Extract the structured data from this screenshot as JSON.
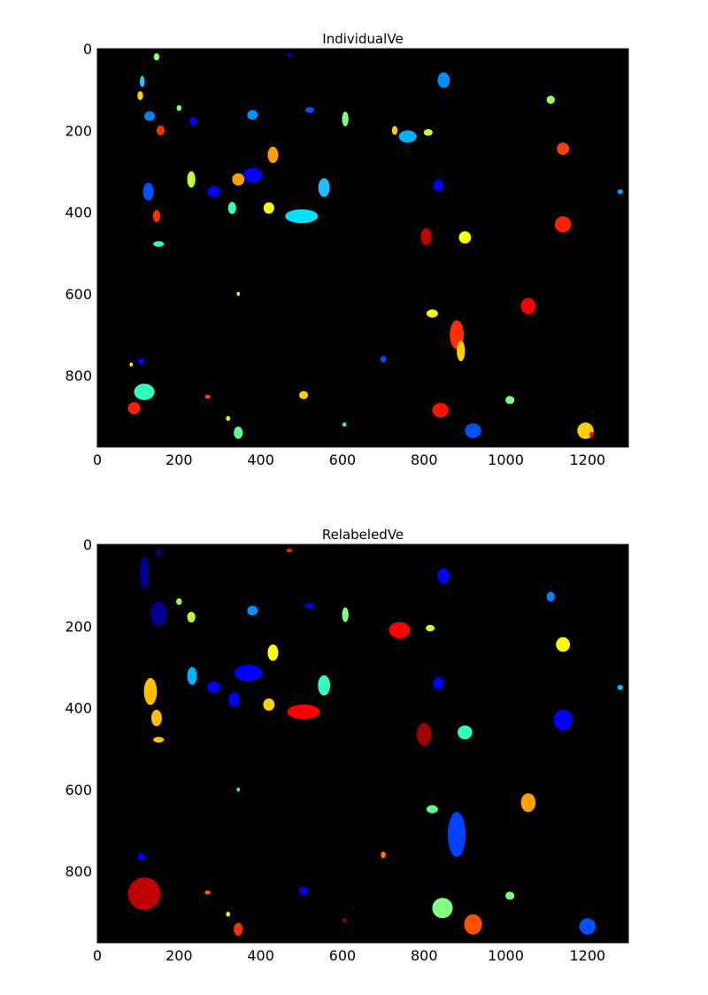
{
  "chart_data": [
    {
      "type": "image",
      "title": "IndividualVe",
      "xlim": [
        0,
        1300
      ],
      "ylim": [
        975,
        0
      ],
      "xticks": [
        "0",
        "200",
        "400",
        "600",
        "800",
        "1000",
        "1200"
      ],
      "yticks": [
        "0",
        "200",
        "400",
        "600",
        "800"
      ],
      "background": "#000000",
      "blobs": [
        {
          "x": 145,
          "y": 20,
          "w": 14,
          "h": 18,
          "color": "#80ff80"
        },
        {
          "x": 110,
          "y": 80,
          "w": 12,
          "h": 28,
          "color": "#30c0ff"
        },
        {
          "x": 105,
          "y": 115,
          "w": 14,
          "h": 22,
          "color": "#ffd000"
        },
        {
          "x": 128,
          "y": 165,
          "w": 26,
          "h": 24,
          "color": "#0080ff"
        },
        {
          "x": 155,
          "y": 200,
          "w": 20,
          "h": 24,
          "color": "#ff3000"
        },
        {
          "x": 200,
          "y": 145,
          "w": 12,
          "h": 14,
          "color": "#80ff80"
        },
        {
          "x": 235,
          "y": 178,
          "w": 18,
          "h": 22,
          "color": "#0000ff"
        },
        {
          "x": 380,
          "y": 162,
          "w": 26,
          "h": 24,
          "color": "#0090ff"
        },
        {
          "x": 520,
          "y": 150,
          "w": 22,
          "h": 14,
          "color": "#0050ff"
        },
        {
          "x": 607,
          "y": 172,
          "w": 16,
          "h": 36,
          "color": "#80ff80"
        },
        {
          "x": 470,
          "y": 15,
          "w": 14,
          "h": 10,
          "color": "#0000c0"
        },
        {
          "x": 848,
          "y": 77,
          "w": 30,
          "h": 38,
          "color": "#0090ff"
        },
        {
          "x": 760,
          "y": 215,
          "w": 44,
          "h": 30,
          "color": "#00b0ff"
        },
        {
          "x": 728,
          "y": 200,
          "w": 14,
          "h": 22,
          "color": "#ffd000"
        },
        {
          "x": 810,
          "y": 205,
          "w": 22,
          "h": 16,
          "color": "#c0ff40"
        },
        {
          "x": 1110,
          "y": 125,
          "w": 20,
          "h": 20,
          "color": "#a0ff60"
        },
        {
          "x": 1140,
          "y": 245,
          "w": 30,
          "h": 30,
          "color": "#ff4000"
        },
        {
          "x": 430,
          "y": 260,
          "w": 26,
          "h": 40,
          "color": "#ffa000"
        },
        {
          "x": 380,
          "y": 310,
          "w": 48,
          "h": 36,
          "color": "#0000ff"
        },
        {
          "x": 345,
          "y": 320,
          "w": 30,
          "h": 30,
          "color": "#ffa000"
        },
        {
          "x": 285,
          "y": 350,
          "w": 32,
          "h": 28,
          "color": "#0000ff"
        },
        {
          "x": 230,
          "y": 320,
          "w": 20,
          "h": 40,
          "color": "#c0ff40"
        },
        {
          "x": 555,
          "y": 340,
          "w": 28,
          "h": 46,
          "color": "#20c0ff"
        },
        {
          "x": 500,
          "y": 410,
          "w": 80,
          "h": 34,
          "color": "#00e0ff"
        },
        {
          "x": 420,
          "y": 390,
          "w": 26,
          "h": 28,
          "color": "#ffff00"
        },
        {
          "x": 330,
          "y": 390,
          "w": 20,
          "h": 30,
          "color": "#30ffc0"
        },
        {
          "x": 125,
          "y": 350,
          "w": 26,
          "h": 44,
          "color": "#0050ff"
        },
        {
          "x": 145,
          "y": 410,
          "w": 18,
          "h": 30,
          "color": "#ff3000"
        },
        {
          "x": 150,
          "y": 478,
          "w": 26,
          "h": 14,
          "color": "#30ffc0"
        },
        {
          "x": 835,
          "y": 335,
          "w": 24,
          "h": 30,
          "color": "#0000ff"
        },
        {
          "x": 805,
          "y": 460,
          "w": 26,
          "h": 42,
          "color": "#c00000"
        },
        {
          "x": 900,
          "y": 462,
          "w": 30,
          "h": 30,
          "color": "#ffff00"
        },
        {
          "x": 1140,
          "y": 430,
          "w": 40,
          "h": 40,
          "color": "#ff2000"
        },
        {
          "x": 1280,
          "y": 350,
          "w": 14,
          "h": 12,
          "color": "#00a0ff"
        },
        {
          "x": 345,
          "y": 600,
          "w": 8,
          "h": 10,
          "color": "#ffff00"
        },
        {
          "x": 820,
          "y": 648,
          "w": 28,
          "h": 20,
          "color": "#ffff00"
        },
        {
          "x": 880,
          "y": 700,
          "w": 34,
          "h": 70,
          "color": "#ff3000"
        },
        {
          "x": 890,
          "y": 740,
          "w": 20,
          "h": 50,
          "color": "#ffd000"
        },
        {
          "x": 1055,
          "y": 630,
          "w": 36,
          "h": 40,
          "color": "#ff0000"
        },
        {
          "x": 700,
          "y": 760,
          "w": 14,
          "h": 16,
          "color": "#0050ff"
        },
        {
          "x": 108,
          "y": 765,
          "w": 16,
          "h": 16,
          "color": "#0000ff"
        },
        {
          "x": 83,
          "y": 773,
          "w": 8,
          "h": 10,
          "color": "#ffff00"
        },
        {
          "x": 115,
          "y": 840,
          "w": 50,
          "h": 40,
          "color": "#30ffc0"
        },
        {
          "x": 90,
          "y": 880,
          "w": 30,
          "h": 30,
          "color": "#ff2000"
        },
        {
          "x": 270,
          "y": 852,
          "w": 14,
          "h": 10,
          "color": "#ff4000"
        },
        {
          "x": 505,
          "y": 848,
          "w": 22,
          "h": 20,
          "color": "#ffd000"
        },
        {
          "x": 320,
          "y": 905,
          "w": 10,
          "h": 12,
          "color": "#ffff00"
        },
        {
          "x": 345,
          "y": 940,
          "w": 22,
          "h": 30,
          "color": "#60ff90"
        },
        {
          "x": 605,
          "y": 920,
          "w": 10,
          "h": 10,
          "color": "#30ffc0"
        },
        {
          "x": 840,
          "y": 885,
          "w": 40,
          "h": 36,
          "color": "#ff1000"
        },
        {
          "x": 1010,
          "y": 860,
          "w": 22,
          "h": 20,
          "color": "#80ff80"
        },
        {
          "x": 920,
          "y": 935,
          "w": 40,
          "h": 36,
          "color": "#0050ff"
        },
        {
          "x": 1195,
          "y": 935,
          "w": 40,
          "h": 40,
          "color": "#ffd000"
        },
        {
          "x": 1210,
          "y": 945,
          "w": 10,
          "h": 14,
          "color": "#ff0000"
        }
      ]
    },
    {
      "type": "image",
      "title": "RelabeledVe",
      "xlim": [
        0,
        1300
      ],
      "ylim": [
        975,
        0
      ],
      "xticks": [
        "0",
        "200",
        "400",
        "600",
        "800",
        "1000",
        "1200"
      ],
      "yticks": [
        "0",
        "200",
        "400",
        "600",
        "800"
      ],
      "background": "#000000",
      "blobs": [
        {
          "x": 150,
          "y": 20,
          "w": 16,
          "h": 18,
          "color": "#000080"
        },
        {
          "x": 115,
          "y": 70,
          "w": 22,
          "h": 80,
          "color": "#000090"
        },
        {
          "x": 150,
          "y": 170,
          "w": 40,
          "h": 60,
          "color": "#000090"
        },
        {
          "x": 200,
          "y": 140,
          "w": 14,
          "h": 16,
          "color": "#a0ff60"
        },
        {
          "x": 230,
          "y": 178,
          "w": 20,
          "h": 26,
          "color": "#c0ff40"
        },
        {
          "x": 380,
          "y": 162,
          "w": 26,
          "h": 24,
          "color": "#0090ff"
        },
        {
          "x": 520,
          "y": 150,
          "w": 26,
          "h": 14,
          "color": "#0000d0"
        },
        {
          "x": 607,
          "y": 172,
          "w": 16,
          "h": 36,
          "color": "#80ff80"
        },
        {
          "x": 470,
          "y": 15,
          "w": 14,
          "h": 10,
          "color": "#ff2000"
        },
        {
          "x": 848,
          "y": 77,
          "w": 30,
          "h": 38,
          "color": "#0000ff"
        },
        {
          "x": 740,
          "y": 210,
          "w": 52,
          "h": 40,
          "color": "#ff0000"
        },
        {
          "x": 815,
          "y": 205,
          "w": 22,
          "h": 16,
          "color": "#c0ff40"
        },
        {
          "x": 1110,
          "y": 128,
          "w": 20,
          "h": 24,
          "color": "#0080ff"
        },
        {
          "x": 1140,
          "y": 245,
          "w": 34,
          "h": 36,
          "color": "#ffff00"
        },
        {
          "x": 430,
          "y": 265,
          "w": 26,
          "h": 40,
          "color": "#ffff00"
        },
        {
          "x": 370,
          "y": 315,
          "w": 70,
          "h": 40,
          "color": "#0000ff"
        },
        {
          "x": 285,
          "y": 350,
          "w": 34,
          "h": 28,
          "color": "#0000ff"
        },
        {
          "x": 335,
          "y": 380,
          "w": 26,
          "h": 36,
          "color": "#0000ff"
        },
        {
          "x": 232,
          "y": 322,
          "w": 24,
          "h": 44,
          "color": "#00b0ff"
        },
        {
          "x": 555,
          "y": 345,
          "w": 30,
          "h": 50,
          "color": "#30ffc0"
        },
        {
          "x": 505,
          "y": 410,
          "w": 80,
          "h": 36,
          "color": "#ff0000"
        },
        {
          "x": 420,
          "y": 392,
          "w": 28,
          "h": 30,
          "color": "#ffd000"
        },
        {
          "x": 130,
          "y": 360,
          "w": 32,
          "h": 66,
          "color": "#ffc000"
        },
        {
          "x": 145,
          "y": 425,
          "w": 26,
          "h": 40,
          "color": "#ffc000"
        },
        {
          "x": 150,
          "y": 478,
          "w": 26,
          "h": 14,
          "color": "#ffc000"
        },
        {
          "x": 835,
          "y": 340,
          "w": 26,
          "h": 30,
          "color": "#0000ff"
        },
        {
          "x": 800,
          "y": 465,
          "w": 36,
          "h": 56,
          "color": "#a00000"
        },
        {
          "x": 900,
          "y": 460,
          "w": 36,
          "h": 34,
          "color": "#30ffc0"
        },
        {
          "x": 1140,
          "y": 430,
          "w": 46,
          "h": 50,
          "color": "#0000ff"
        },
        {
          "x": 1280,
          "y": 350,
          "w": 14,
          "h": 12,
          "color": "#00c0ff"
        },
        {
          "x": 345,
          "y": 600,
          "w": 8,
          "h": 10,
          "color": "#40ffb0"
        },
        {
          "x": 820,
          "y": 648,
          "w": 28,
          "h": 20,
          "color": "#60ff90"
        },
        {
          "x": 880,
          "y": 710,
          "w": 44,
          "h": 110,
          "color": "#0040ff"
        },
        {
          "x": 1055,
          "y": 632,
          "w": 36,
          "h": 46,
          "color": "#ffa000"
        },
        {
          "x": 700,
          "y": 760,
          "w": 12,
          "h": 16,
          "color": "#ff8000"
        },
        {
          "x": 108,
          "y": 765,
          "w": 18,
          "h": 18,
          "color": "#0000ff"
        },
        {
          "x": 115,
          "y": 855,
          "w": 80,
          "h": 80,
          "color": "#c00000"
        },
        {
          "x": 270,
          "y": 852,
          "w": 14,
          "h": 10,
          "color": "#ff6000"
        },
        {
          "x": 505,
          "y": 848,
          "w": 22,
          "h": 20,
          "color": "#0000ff"
        },
        {
          "x": 320,
          "y": 905,
          "w": 10,
          "h": 12,
          "color": "#ffff00"
        },
        {
          "x": 345,
          "y": 942,
          "w": 22,
          "h": 32,
          "color": "#ff3000"
        },
        {
          "x": 605,
          "y": 920,
          "w": 10,
          "h": 10,
          "color": "#a00000"
        },
        {
          "x": 845,
          "y": 890,
          "w": 50,
          "h": 50,
          "color": "#80ff80"
        },
        {
          "x": 1010,
          "y": 860,
          "w": 22,
          "h": 20,
          "color": "#80ff80"
        },
        {
          "x": 920,
          "y": 930,
          "w": 44,
          "h": 50,
          "color": "#ff5000"
        },
        {
          "x": 1200,
          "y": 935,
          "w": 40,
          "h": 40,
          "color": "#0050ff"
        }
      ]
    }
  ]
}
